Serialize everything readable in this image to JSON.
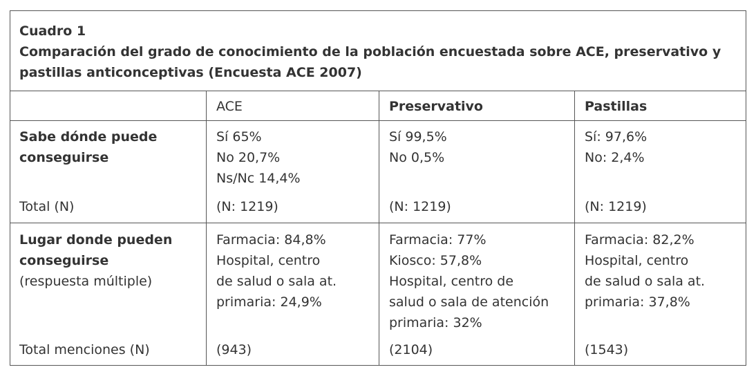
{
  "caption": {
    "number": "Cuadro 1",
    "title_line1": "Comparación del grado de conocimiento de la población encuestada sobre ACE, preservativo y",
    "title_line2": "pastillas anticonceptivas (Encuesta ACE 2007)"
  },
  "header": {
    "col1": "",
    "col2": "ACE",
    "col3": "Preservativo",
    "col4": "Pastillas"
  },
  "row1": {
    "label_line1": "Sabe dónde puede",
    "label_line2": "conseguirse",
    "ace": [
      "Sí 65%",
      "No 20,7%",
      "Ns/Nc 14,4%"
    ],
    "preservativo": [
      "Sí 99,5%",
      "No 0,5%"
    ],
    "pastillas": [
      "Sí: 97,6%",
      "No: 2,4%"
    ],
    "total_label": "Total (N)",
    "total_ace": "(N: 1219)",
    "total_preservativo": "(N: 1219)",
    "total_pastillas": "(N: 1219)"
  },
  "row2": {
    "label_line1": "Lugar donde pueden",
    "label_line2": "conseguirse",
    "label_line3": "(respuesta múltiple)",
    "ace": [
      "Farmacia: 84,8%",
      "Hospital, centro",
      "de salud o sala at.",
      "primaria: 24,9%"
    ],
    "preservativo": [
      "Farmacia: 77%",
      "Kiosco: 57,8%",
      "Hospital, centro de",
      "salud o sala de atención",
      "primaria: 32%"
    ],
    "pastillas": [
      "Farmacia: 82,2%",
      "Hospital, centro",
      "de salud o sala at.",
      "primaria: 37,8%"
    ],
    "total_label": "Total menciones (N)",
    "total_ace": "(943)",
    "total_preservativo": "(2104)",
    "total_pastillas": "(1543)"
  }
}
